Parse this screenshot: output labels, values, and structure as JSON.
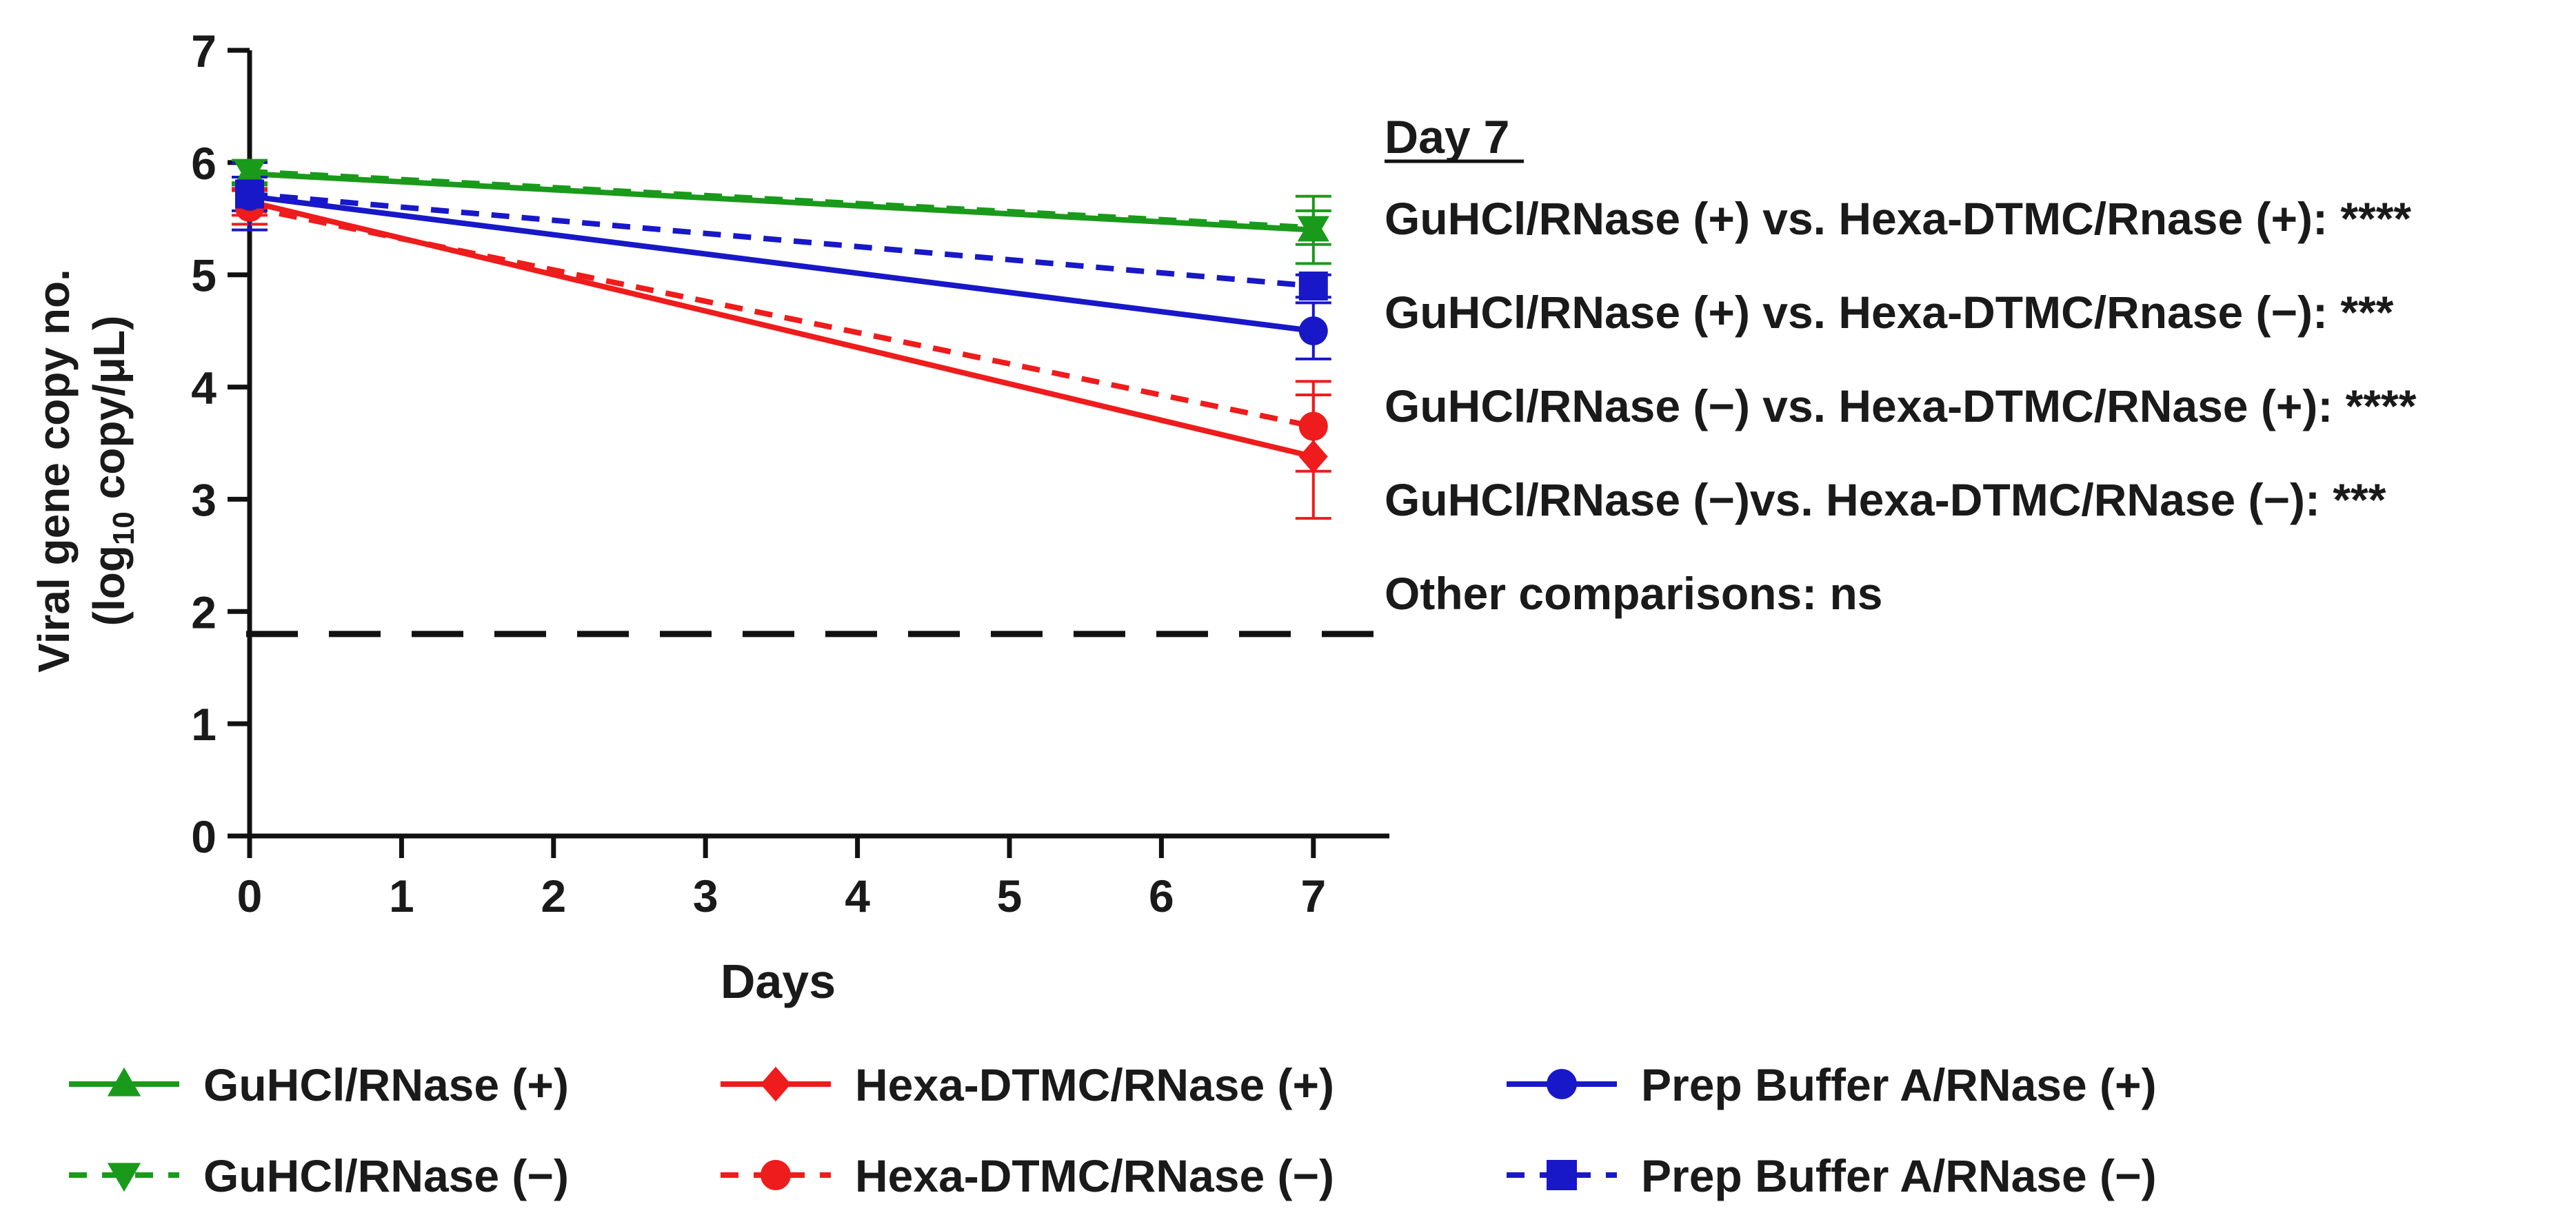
{
  "chart_data": {
    "type": "line",
    "xlabel": "Days",
    "ylabel_line1": "Viral gene copy no.",
    "ylabel_line2_prefix": "(log",
    "ylabel_line2_sub": "10",
    "ylabel_line2_suffix": " copy/μL)",
    "xlim": [
      0,
      7.5
    ],
    "ylim": [
      0,
      7
    ],
    "x_ticks": [
      "0",
      "1",
      "2",
      "3",
      "4",
      "5",
      "6",
      "7"
    ],
    "y_ticks": [
      "0",
      "1",
      "2",
      "3",
      "4",
      "5",
      "6",
      "7"
    ],
    "detection_limit": 1.8,
    "series": [
      {
        "name": "GuHCl/RNase (+)",
        "color": "#1a9a1a",
        "dash": false,
        "marker": "triangle-up",
        "x": [
          0,
          7
        ],
        "values": [
          5.9,
          5.4
        ],
        "err": [
          0.1,
          0.3
        ]
      },
      {
        "name": "GuHCl/RNase (−)",
        "color": "#1a9a1a",
        "dash": true,
        "marker": "triangle-down",
        "x": [
          0,
          7
        ],
        "values": [
          5.92,
          5.42
        ],
        "err": [
          0.1,
          0.15
        ]
      },
      {
        "name": "Hexa-DTMC/RNase (+)",
        "color": "#ee1c1c",
        "dash": false,
        "marker": "diamond",
        "x": [
          0,
          7
        ],
        "values": [
          5.65,
          3.38
        ],
        "err": [
          0.12,
          0.55
        ]
      },
      {
        "name": "Hexa-DTMC/RNase (−)",
        "color": "#ee1c1c",
        "dash": true,
        "marker": "circle",
        "x": [
          0,
          7
        ],
        "values": [
          5.6,
          3.65
        ],
        "err": [
          0.15,
          0.4
        ]
      },
      {
        "name": "Prep Buffer A/RNase (+)",
        "color": "#1818c8",
        "dash": false,
        "marker": "circle",
        "x": [
          0,
          7
        ],
        "values": [
          5.7,
          4.5
        ],
        "err": [
          0.3,
          0.25
        ]
      },
      {
        "name": "Prep Buffer A/RNase (−)",
        "color": "#1818c8",
        "dash": true,
        "marker": "square",
        "x": [
          0,
          7
        ],
        "values": [
          5.72,
          4.9
        ],
        "err": [
          0.15,
          0.1
        ]
      }
    ],
    "annotation": {
      "title": "Day 7",
      "lines": [
        "GuHCl/RNase (+) vs. Hexa-DTMC/Rnase (+): ****",
        "GuHCl/RNase (+) vs. Hexa-DTMC/Rnase (−): ***",
        "GuHCl/RNase (−) vs. Hexa-DTMC/RNase (+): ****",
        "GuHCl/RNase (−)vs. Hexa-DTMC/RNase (−): ***",
        "Other comparisons: ns"
      ]
    }
  }
}
